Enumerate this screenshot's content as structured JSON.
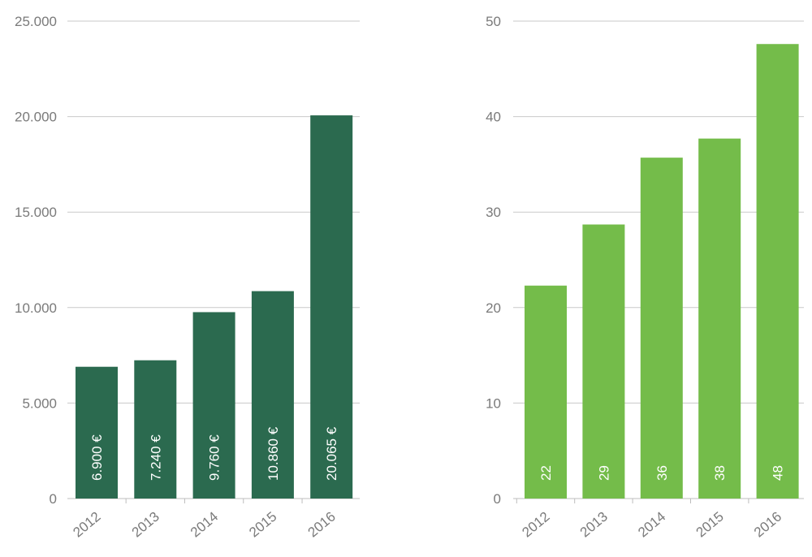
{
  "chart_data": [
    {
      "type": "bar",
      "categories": [
        "2012",
        "2013",
        "2014",
        "2015",
        "2016"
      ],
      "values": [
        6900,
        7240,
        9760,
        10860,
        20065
      ],
      "data_labels": [
        "6.900 €",
        "7.240 €",
        "9.760 €",
        "10.860 €",
        "20.065 €"
      ],
      "yticks": [
        0,
        5000,
        10000,
        15000,
        20000,
        25000
      ],
      "ytick_labels": [
        "0",
        "5.000",
        "10.000",
        "15.000",
        "20.000",
        "25.000"
      ],
      "ylim": [
        0,
        25000
      ],
      "grid": true,
      "color": "#2b6a4f",
      "title": "",
      "xlabel": "",
      "ylabel": ""
    },
    {
      "type": "bar",
      "categories": [
        "2012",
        "2013",
        "2014",
        "2015",
        "2016"
      ],
      "values": [
        22.3,
        28.7,
        35.7,
        37.7,
        47.6
      ],
      "data_labels": [
        "22",
        "29",
        "36",
        "38",
        "48"
      ],
      "yticks": [
        0,
        10,
        20,
        30,
        40,
        50
      ],
      "ytick_labels": [
        "0",
        "10",
        "20",
        "30",
        "40",
        "50"
      ],
      "ylim": [
        0,
        50
      ],
      "grid": true,
      "color": "#74bc4a",
      "title": "",
      "xlabel": "",
      "ylabel": ""
    }
  ]
}
